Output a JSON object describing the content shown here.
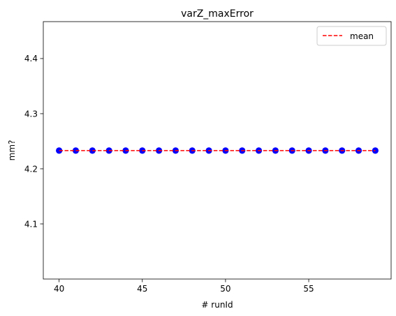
{
  "chart_data": {
    "type": "scatter",
    "title": "varZ_maxError",
    "xlabel": "# runId",
    "ylabel": "mm?",
    "xlim": [
      39.05,
      59.95
    ],
    "ylim": [
      4.0,
      4.467
    ],
    "xticks": [
      40,
      45,
      50,
      55
    ],
    "xtick_labels": [
      "40",
      "45",
      "50",
      "55"
    ],
    "yticks": [
      4.1,
      4.2,
      4.3,
      4.4
    ],
    "ytick_labels": [
      "4.1",
      "4.2",
      "4.3",
      "4.4"
    ],
    "grid": false,
    "legend": {
      "placement": "top-right",
      "entries": [
        {
          "label": "mean",
          "style": "dashed-line",
          "color": "#ff0000"
        }
      ]
    },
    "series": [
      {
        "kind": "points",
        "color": "#0000ff",
        "x": [
          40,
          41,
          42,
          43,
          44,
          45,
          46,
          47,
          48,
          49,
          50,
          51,
          52,
          53,
          54,
          55,
          56,
          57,
          58,
          59
        ],
        "y": [
          4.233,
          4.233,
          4.233,
          4.233,
          4.233,
          4.233,
          4.233,
          4.233,
          4.233,
          4.233,
          4.233,
          4.233,
          4.233,
          4.233,
          4.233,
          4.233,
          4.233,
          4.233,
          4.233,
          4.233
        ]
      },
      {
        "name": "mean",
        "kind": "line",
        "style": "dashed",
        "color": "#ff0000",
        "x": [
          40,
          59
        ],
        "y": [
          4.233,
          4.233
        ]
      }
    ]
  }
}
